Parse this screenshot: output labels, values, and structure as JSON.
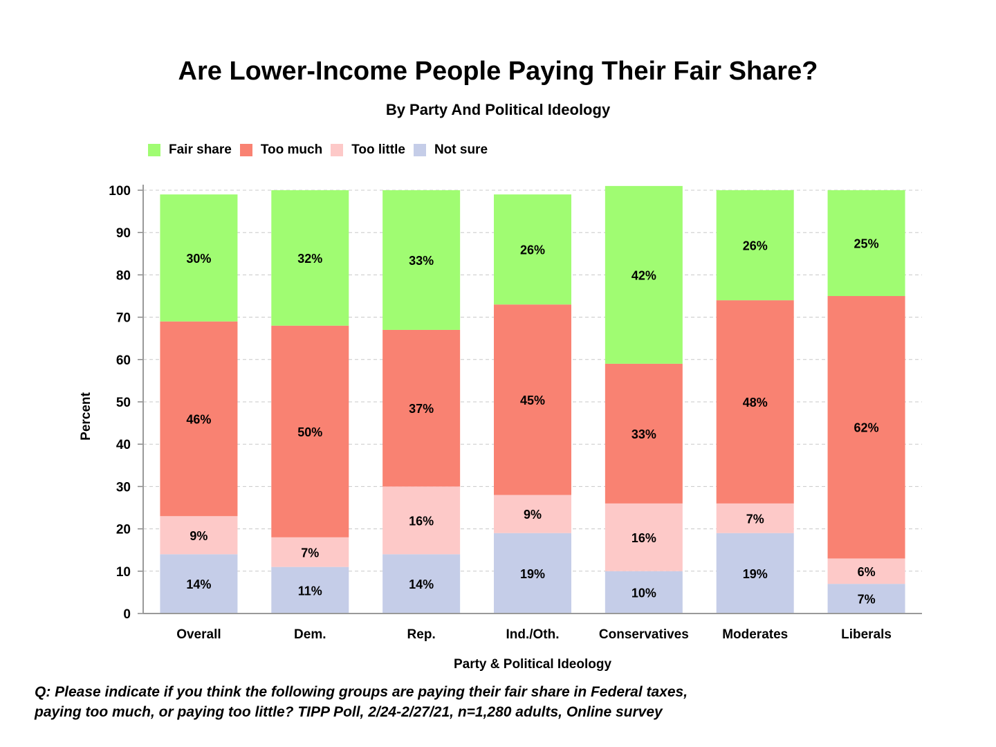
{
  "title": "Are Lower-Income People Paying Their Fair Share?",
  "subtitle": "By Party And Political Ideology",
  "footnote": {
    "line1": "Q:  Please indicate if you think the following groups are paying their fair share in Federal taxes,",
    "line2": "paying too much, or paying too little?  TIPP Poll, 2/24-2/27/21, n=1,280 adults, Online survey"
  },
  "chart_data": {
    "type": "bar",
    "stacked": true,
    "title": "Are Lower-Income People Paying Their Fair Share?",
    "subtitle": "By Party And Political Ideology",
    "xlabel": "Party & Political Ideology",
    "ylabel": "Percent",
    "ylim": [
      0,
      100
    ],
    "yticks": [
      0,
      10,
      20,
      30,
      40,
      50,
      60,
      70,
      80,
      90,
      100
    ],
    "grid": true,
    "legend_position": "top-left",
    "categories": [
      "Overall",
      "Dem.",
      "Rep.",
      "Ind./Oth.",
      "Conservatives",
      "Moderates",
      "Liberals"
    ],
    "series": [
      {
        "name": "Not sure",
        "color": "#c5cde8",
        "values": [
          14,
          11,
          14,
          19,
          10,
          19,
          7
        ]
      },
      {
        "name": "Too little",
        "color": "#fdc9c8",
        "values": [
          9,
          7,
          16,
          9,
          16,
          7,
          6
        ]
      },
      {
        "name": "Too much",
        "color": "#f98272",
        "values": [
          46,
          50,
          37,
          45,
          33,
          48,
          62
        ]
      },
      {
        "name": "Fair share",
        "color": "#a0fc72",
        "values": [
          30,
          32,
          33,
          26,
          42,
          26,
          25
        ]
      }
    ],
    "legend_order": [
      "Fair share",
      "Too much",
      "Too little",
      "Not sure"
    ]
  }
}
